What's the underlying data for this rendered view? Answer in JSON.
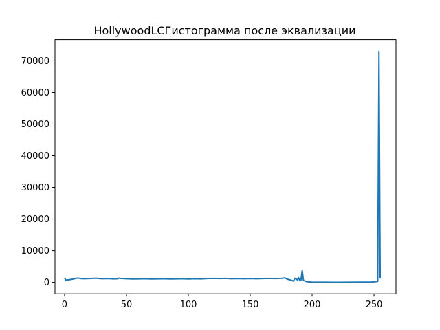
{
  "chart_data": {
    "type": "line",
    "title": "HollywoodLCГистограмма после эквализации",
    "xlabel": "",
    "ylabel": "",
    "xlim": [
      -7.75,
      267.75
    ],
    "ylim": [
      -3600,
      76700
    ],
    "xticks": [
      0,
      50,
      100,
      150,
      200,
      250
    ],
    "yticks": [
      0,
      10000,
      20000,
      30000,
      40000,
      50000,
      60000,
      70000
    ],
    "grid": false,
    "series": [
      {
        "color": "#1f77b4",
        "points": [
          [
            0,
            1500
          ],
          [
            1,
            700
          ],
          [
            3,
            800
          ],
          [
            5,
            900
          ],
          [
            7,
            1050
          ],
          [
            9,
            1250
          ],
          [
            11,
            1350
          ],
          [
            13,
            1200
          ],
          [
            16,
            1150
          ],
          [
            20,
            1200
          ],
          [
            23,
            1250
          ],
          [
            25,
            1300
          ],
          [
            27,
            1250
          ],
          [
            30,
            1150
          ],
          [
            35,
            1200
          ],
          [
            40,
            1100
          ],
          [
            43,
            1150
          ],
          [
            44,
            1350
          ],
          [
            45,
            1250
          ],
          [
            47,
            1200
          ],
          [
            50,
            1150
          ],
          [
            55,
            1050
          ],
          [
            60,
            1100
          ],
          [
            65,
            1150
          ],
          [
            70,
            1050
          ],
          [
            75,
            1100
          ],
          [
            80,
            1150
          ],
          [
            85,
            1050
          ],
          [
            90,
            1100
          ],
          [
            95,
            1150
          ],
          [
            100,
            1050
          ],
          [
            105,
            1150
          ],
          [
            110,
            1100
          ],
          [
            115,
            1200
          ],
          [
            120,
            1250
          ],
          [
            125,
            1200
          ],
          [
            130,
            1250
          ],
          [
            135,
            1150
          ],
          [
            140,
            1200
          ],
          [
            145,
            1150
          ],
          [
            150,
            1200
          ],
          [
            155,
            1150
          ],
          [
            160,
            1200
          ],
          [
            165,
            1250
          ],
          [
            170,
            1200
          ],
          [
            175,
            1250
          ],
          [
            178,
            1400
          ],
          [
            180,
            1000
          ],
          [
            183,
            700
          ],
          [
            185,
            400
          ],
          [
            186,
            1300
          ],
          [
            188,
            800
          ],
          [
            189,
            1500
          ],
          [
            190,
            600
          ],
          [
            191,
            700
          ],
          [
            192,
            3800
          ],
          [
            193,
            600
          ],
          [
            195,
            300
          ],
          [
            197,
            150
          ],
          [
            200,
            80
          ],
          [
            210,
            50
          ],
          [
            220,
            40
          ],
          [
            230,
            50
          ],
          [
            240,
            70
          ],
          [
            248,
            120
          ],
          [
            252,
            250
          ],
          [
            253,
            300
          ],
          [
            254,
            73000
          ],
          [
            255,
            1200
          ]
        ]
      }
    ]
  }
}
